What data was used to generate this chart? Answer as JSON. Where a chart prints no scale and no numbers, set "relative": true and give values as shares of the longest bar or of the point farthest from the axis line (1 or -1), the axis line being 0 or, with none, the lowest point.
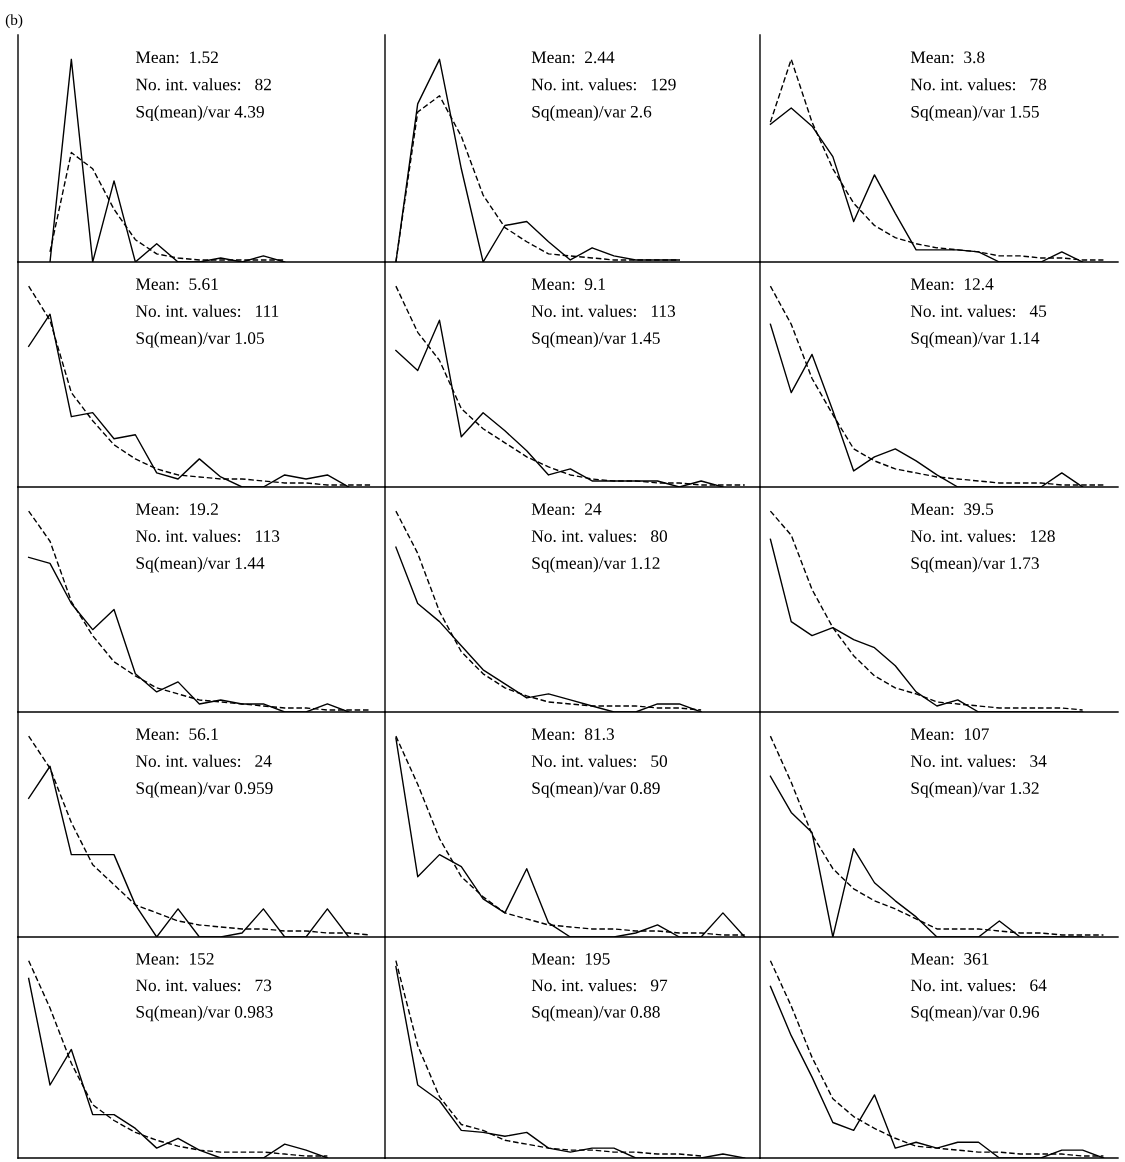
{
  "chart_data": [
    {
      "type": "line",
      "relative": true,
      "title": "(b)",
      "categories": [
        null,
        null,
        null,
        null,
        null,
        null,
        null,
        null,
        null,
        null,
        null,
        null,
        null,
        null,
        null,
        null,
        null
      ],
      "annotations": [
        "Mean:  1.52",
        "No. int. values:   82",
        "Sq(mean)/var 4.39"
      ],
      "series": [
        {
          "color": "#000000",
          "line_style": "solid",
          "values": [
            null,
            0,
            1.0,
            0,
            0.4,
            0,
            0.09,
            0,
            0,
            0.02,
            0,
            0.03,
            0,
            null,
            null,
            null,
            null
          ]
        },
        {
          "color": "#000000",
          "line_style": "dashed",
          "values": [
            null,
            0.05,
            0.54,
            0.46,
            0.26,
            0.11,
            0.04,
            0.02,
            0.01,
            0.01,
            0.01,
            0.01,
            0.01,
            null,
            null,
            null,
            null
          ]
        }
      ]
    },
    {
      "type": "line",
      "relative": true,
      "categories": [
        null,
        null,
        null,
        null,
        null,
        null,
        null,
        null,
        null,
        null,
        null,
        null,
        null,
        null,
        null,
        null,
        null
      ],
      "annotations": [
        "Mean:  2.44",
        "No. int. values:   129",
        "Sq(mean)/var 2.6"
      ],
      "series": [
        {
          "color": "#000000",
          "line_style": "solid",
          "values": [
            0,
            0.78,
            1.0,
            0.46,
            0,
            0.18,
            0.2,
            0.1,
            0.01,
            0.07,
            0.03,
            0.01,
            0.01,
            0.01,
            null,
            null,
            null
          ]
        },
        {
          "color": "#000000",
          "line_style": "dashed",
          "values": [
            0,
            0.74,
            0.82,
            0.62,
            0.33,
            0.17,
            0.1,
            0.04,
            0.03,
            0.02,
            0.01,
            0.01,
            0.01,
            0.01,
            null,
            null,
            null
          ]
        }
      ]
    },
    {
      "type": "line",
      "relative": true,
      "categories": [
        null,
        null,
        null,
        null,
        null,
        null,
        null,
        null,
        null,
        null,
        null,
        null,
        null,
        null,
        null,
        null,
        null
      ],
      "annotations": [
        "Mean:  3.8",
        "No. int. values:   78",
        "Sq(mean)/var 1.55"
      ],
      "series": [
        {
          "color": "#000000",
          "line_style": "solid",
          "values": [
            0.68,
            0.76,
            0.67,
            0.52,
            0.2,
            0.43,
            0.24,
            0.06,
            0.06,
            0.06,
            0.05,
            0,
            0,
            0,
            0.05,
            0,
            null
          ]
        },
        {
          "color": "#000000",
          "line_style": "dashed",
          "values": [
            0.69,
            1.0,
            0.69,
            0.46,
            0.29,
            0.18,
            0.12,
            0.09,
            0.07,
            0.06,
            0.05,
            0.03,
            0.03,
            0.02,
            0.02,
            0.01,
            0.01
          ]
        }
      ]
    },
    {
      "type": "line",
      "relative": true,
      "categories": [
        null,
        null,
        null,
        null,
        null,
        null,
        null,
        null,
        null,
        null,
        null,
        null,
        null,
        null,
        null,
        null,
        null
      ],
      "annotations": [
        "Mean:  5.61",
        "No. int. values:   111",
        "Sq(mean)/var 1.05"
      ],
      "series": [
        {
          "color": "#000000",
          "line_style": "solid",
          "values": [
            0.7,
            0.86,
            0.35,
            0.37,
            0.24,
            0.26,
            0.07,
            0.04,
            0.14,
            0.05,
            0,
            0,
            0.06,
            0.04,
            0.06,
            0,
            null
          ]
        },
        {
          "color": "#000000",
          "line_style": "dashed",
          "values": [
            1.0,
            0.83,
            0.47,
            0.33,
            0.21,
            0.14,
            0.09,
            0.06,
            0.05,
            0.04,
            0.04,
            0.03,
            0.02,
            0.02,
            0.01,
            0.01,
            0.01
          ]
        }
      ]
    },
    {
      "type": "line",
      "relative": true,
      "categories": [
        null,
        null,
        null,
        null,
        null,
        null,
        null,
        null,
        null,
        null,
        null,
        null,
        null,
        null,
        null,
        null,
        null
      ],
      "annotations": [
        "Mean:  9.1",
        "No. int. values:   113",
        "Sq(mean)/var 1.45"
      ],
      "series": [
        {
          "color": "#000000",
          "line_style": "solid",
          "values": [
            0.68,
            0.58,
            0.83,
            0.25,
            0.37,
            0.28,
            0.18,
            0.06,
            0.09,
            0.03,
            0.03,
            0.03,
            0.03,
            0,
            0.03,
            0,
            null
          ]
        },
        {
          "color": "#000000",
          "line_style": "dashed",
          "values": [
            1.0,
            0.77,
            0.63,
            0.39,
            0.29,
            0.22,
            0.15,
            0.1,
            0.06,
            0.04,
            0.03,
            0.03,
            0.02,
            0.02,
            0.01,
            0.01,
            0.01
          ]
        }
      ]
    },
    {
      "type": "line",
      "relative": true,
      "categories": [
        null,
        null,
        null,
        null,
        null,
        null,
        null,
        null,
        null,
        null,
        null,
        null,
        null,
        null,
        null,
        null,
        null
      ],
      "annotations": [
        "Mean:  12.4",
        "No. int. values:   45",
        "Sq(mean)/var 1.14"
      ],
      "series": [
        {
          "color": "#000000",
          "line_style": "solid",
          "values": [
            0.81,
            0.47,
            0.66,
            0.38,
            0.08,
            0.15,
            0.19,
            0.13,
            0.06,
            0,
            0,
            0,
            0,
            0,
            0.07,
            0,
            null
          ]
        },
        {
          "color": "#000000",
          "line_style": "dashed",
          "values": [
            1.0,
            0.81,
            0.54,
            0.36,
            0.19,
            0.13,
            0.09,
            0.07,
            0.05,
            0.04,
            0.03,
            0.02,
            0.02,
            0.02,
            0.01,
            0.01,
            0.01
          ]
        }
      ]
    },
    {
      "type": "line",
      "relative": true,
      "categories": [
        null,
        null,
        null,
        null,
        null,
        null,
        null,
        null,
        null,
        null,
        null,
        null,
        null,
        null,
        null,
        null,
        null
      ],
      "annotations": [
        "Mean:  19.2",
        "No. int. values:   113",
        "Sq(mean)/var 1.44"
      ],
      "series": [
        {
          "color": "#000000",
          "line_style": "solid",
          "values": [
            0.77,
            0.74,
            0.54,
            0.41,
            0.51,
            0.19,
            0.1,
            0.15,
            0.04,
            0.06,
            0.04,
            0.04,
            0,
            0,
            0.04,
            0,
            null
          ]
        },
        {
          "color": "#000000",
          "line_style": "dashed",
          "values": [
            1.0,
            0.85,
            0.55,
            0.38,
            0.25,
            0.18,
            0.12,
            0.09,
            0.06,
            0.05,
            0.04,
            0.03,
            0.02,
            0.02,
            0.01,
            0.01,
            0.01
          ]
        }
      ]
    },
    {
      "type": "line",
      "relative": true,
      "categories": [
        null,
        null,
        null,
        null,
        null,
        null,
        null,
        null,
        null,
        null,
        null,
        null,
        null,
        null,
        null,
        null,
        null
      ],
      "annotations": [
        "Mean:  24",
        "No. int. values:   80",
        "Sq(mean)/var 1.12"
      ],
      "series": [
        {
          "color": "#000000",
          "line_style": "solid",
          "values": [
            0.82,
            0.54,
            0.45,
            0.33,
            0.21,
            0.14,
            0.07,
            0.09,
            0.06,
            0.03,
            0,
            0,
            0.04,
            0.04,
            0,
            null,
            null
          ]
        },
        {
          "color": "#000000",
          "line_style": "dashed",
          "values": [
            1.0,
            0.79,
            0.5,
            0.3,
            0.19,
            0.12,
            0.08,
            0.05,
            0.04,
            0.03,
            0.03,
            0.03,
            0.02,
            0.02,
            0.01,
            null,
            null
          ]
        }
      ]
    },
    {
      "type": "line",
      "relative": true,
      "categories": [
        null,
        null,
        null,
        null,
        null,
        null,
        null,
        null,
        null,
        null,
        null,
        null,
        null,
        null,
        null,
        null,
        null
      ],
      "annotations": [
        "Mean:  39.5",
        "No. int. values:   128",
        "Sq(mean)/var 1.73"
      ],
      "series": [
        {
          "color": "#000000",
          "line_style": "solid",
          "values": [
            0.86,
            0.45,
            0.38,
            0.42,
            0.36,
            0.32,
            0.23,
            0.1,
            0.03,
            0.06,
            0,
            0,
            0,
            0,
            0,
            0,
            null
          ]
        },
        {
          "color": "#000000",
          "line_style": "dashed",
          "values": [
            1.0,
            0.88,
            0.61,
            0.42,
            0.28,
            0.18,
            0.12,
            0.09,
            0.05,
            0.04,
            0.03,
            0.02,
            0.02,
            0.02,
            0.02,
            0.01,
            null
          ]
        }
      ]
    },
    {
      "type": "line",
      "relative": true,
      "categories": [
        null,
        null,
        null,
        null,
        null,
        null,
        null,
        null,
        null,
        null,
        null,
        null,
        null,
        null,
        null,
        null,
        null
      ],
      "annotations": [
        "Mean:  56.1",
        "No. int. values:   24",
        "Sq(mean)/var 0.959"
      ],
      "series": [
        {
          "color": "#000000",
          "line_style": "solid",
          "values": [
            0.69,
            0.85,
            0.41,
            0.41,
            0.41,
            0.16,
            0,
            0.14,
            0,
            0,
            0.02,
            0.14,
            0,
            0,
            0.14,
            0,
            null
          ]
        },
        {
          "color": "#000000",
          "line_style": "dashed",
          "values": [
            1.0,
            0.84,
            0.57,
            0.36,
            0.26,
            0.16,
            0.12,
            0.08,
            0.06,
            0.05,
            0.04,
            0.04,
            0.03,
            0.03,
            0.02,
            0.02,
            0.01
          ]
        }
      ]
    },
    {
      "type": "line",
      "relative": true,
      "categories": [
        null,
        null,
        null,
        null,
        null,
        null,
        null,
        null,
        null,
        null,
        null,
        null,
        null,
        null,
        null,
        null,
        null
      ],
      "annotations": [
        "Mean:  81.3",
        "No. int. values:   50",
        "Sq(mean)/var 0.89"
      ],
      "series": [
        {
          "color": "#000000",
          "line_style": "solid",
          "values": [
            0.99,
            0.3,
            0.41,
            0.35,
            0.19,
            0.12,
            0.34,
            0.07,
            0,
            0,
            0,
            0.02,
            0.06,
            0,
            0,
            0.12,
            0
          ]
        },
        {
          "color": "#000000",
          "line_style": "dashed",
          "values": [
            1.0,
            0.76,
            0.49,
            0.3,
            0.2,
            0.12,
            0.09,
            0.06,
            0.05,
            0.04,
            0.04,
            0.03,
            0.03,
            0.02,
            0.02,
            0.01,
            0.01
          ]
        }
      ]
    },
    {
      "type": "line",
      "relative": true,
      "categories": [
        null,
        null,
        null,
        null,
        null,
        null,
        null,
        null,
        null,
        null,
        null,
        null,
        null,
        null,
        null,
        null,
        null
      ],
      "annotations": [
        "Mean:  107",
        "No. int. values:   34",
        "Sq(mean)/var 1.32"
      ],
      "series": [
        {
          "color": "#000000",
          "line_style": "solid",
          "values": [
            0.8,
            0.62,
            0.52,
            0,
            0.44,
            0.27,
            0.18,
            0.1,
            0,
            0,
            0,
            0.08,
            0,
            0,
            0,
            0,
            null
          ]
        },
        {
          "color": "#000000",
          "line_style": "dashed",
          "values": [
            1.0,
            0.77,
            0.51,
            0.34,
            0.24,
            0.18,
            0.14,
            0.09,
            0.04,
            0.04,
            0.04,
            0.03,
            0.02,
            0.02,
            0.01,
            0.01,
            0.01
          ]
        }
      ]
    },
    {
      "type": "line",
      "relative": true,
      "categories": [
        null,
        null,
        null,
        null,
        null,
        null,
        null,
        null,
        null,
        null,
        null,
        null,
        null,
        null,
        null,
        null,
        null
      ],
      "annotations": [
        "Mean:  152",
        "No. int. values:   73",
        "Sq(mean)/var 0.983"
      ],
      "series": [
        {
          "color": "#000000",
          "line_style": "solid",
          "values": [
            0.91,
            0.37,
            0.55,
            0.22,
            0.22,
            0.15,
            0.05,
            0.1,
            0.04,
            0,
            0,
            0,
            0.07,
            0.04,
            0,
            null,
            null
          ]
        },
        {
          "color": "#000000",
          "line_style": "dashed",
          "values": [
            1.0,
            0.76,
            0.48,
            0.27,
            0.19,
            0.13,
            0.09,
            0.06,
            0.04,
            0.03,
            0.03,
            0.03,
            0.02,
            0.01,
            0.01,
            null,
            null
          ]
        }
      ]
    },
    {
      "type": "line",
      "relative": true,
      "categories": [
        null,
        null,
        null,
        null,
        null,
        null,
        null,
        null,
        null,
        null,
        null,
        null,
        null,
        null,
        null,
        null,
        null
      ],
      "annotations": [
        "Mean:  195",
        "No. int. values:   97",
        "Sq(mean)/var 0.88"
      ],
      "series": [
        {
          "color": "#000000",
          "line_style": "solid",
          "values": [
            0.97,
            0.37,
            0.29,
            0.14,
            0.13,
            0.11,
            0.13,
            0.05,
            0.03,
            0.05,
            0.05,
            0,
            0,
            0,
            0,
            0.02,
            0
          ]
        },
        {
          "color": "#000000",
          "line_style": "dashed",
          "values": [
            1.0,
            0.57,
            0.31,
            0.17,
            0.14,
            0.09,
            0.07,
            0.05,
            0.04,
            0.04,
            0.03,
            0.03,
            0.02,
            0.02,
            0.01,
            null,
            null
          ]
        }
      ]
    },
    {
      "type": "line",
      "relative": true,
      "categories": [
        null,
        null,
        null,
        null,
        null,
        null,
        null,
        null,
        null,
        null,
        null,
        null,
        null,
        null,
        null,
        null,
        null
      ],
      "annotations": [
        "Mean:  361",
        "No. int. values:   64",
        "Sq(mean)/var 0.96"
      ],
      "series": [
        {
          "color": "#000000",
          "line_style": "solid",
          "values": [
            0.87,
            0.62,
            0.41,
            0.18,
            0.14,
            0.32,
            0.05,
            0.08,
            0.05,
            0.08,
            0.08,
            0,
            0,
            0,
            0.04,
            0.04,
            0
          ]
        },
        {
          "color": "#000000",
          "line_style": "dashed",
          "values": [
            1.0,
            0.77,
            0.51,
            0.3,
            0.21,
            0.15,
            0.1,
            0.06,
            0.05,
            0.04,
            0.03,
            0.03,
            0.02,
            0.02,
            0.02,
            0.01,
            0.01
          ]
        }
      ]
    }
  ]
}
